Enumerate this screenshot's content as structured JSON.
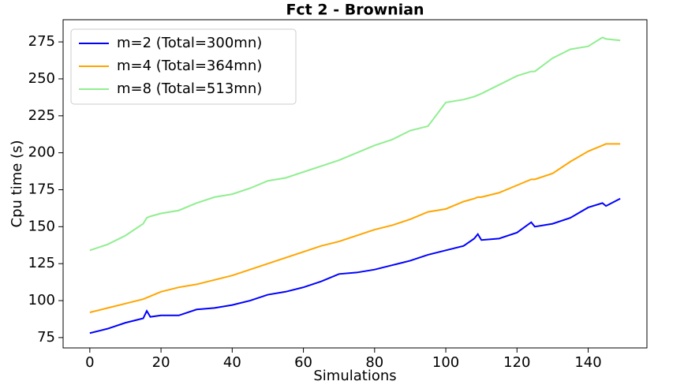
{
  "chart_data": {
    "type": "line",
    "title": "Fct 2 - Brownian",
    "x_label": "Simulations",
    "y_label": "Cpu time (s)",
    "x": [
      0,
      5,
      10,
      15,
      16,
      17,
      20,
      25,
      30,
      35,
      40,
      45,
      50,
      55,
      60,
      65,
      70,
      75,
      80,
      85,
      90,
      95,
      100,
      105,
      108,
      109,
      110,
      115,
      120,
      124,
      125,
      130,
      135,
      140,
      144,
      145,
      149
    ],
    "series": [
      {
        "name": "m=2 (Total=300mn)",
        "color": "#0000ff",
        "values": [
          78,
          81,
          85,
          88,
          93,
          89,
          90,
          90,
          94,
          95,
          97,
          100,
          104,
          106,
          109,
          113,
          118,
          119,
          121,
          124,
          127,
          131,
          134,
          137,
          142,
          145,
          141,
          142,
          146,
          153,
          150,
          152,
          156,
          163,
          166,
          164,
          169
        ]
      },
      {
        "name": "m=4 (Total=364mn)",
        "color": "#ffa500",
        "values": [
          92,
          95,
          98,
          101,
          102,
          103,
          106,
          109,
          111,
          114,
          117,
          121,
          125,
          129,
          133,
          137,
          140,
          144,
          148,
          151,
          155,
          160,
          162,
          167,
          169,
          170,
          170,
          173,
          178,
          182,
          182,
          186,
          194,
          201,
          205,
          206,
          206
        ]
      },
      {
        "name": "m=8 (Total=513mn)",
        "color": "#90ee90",
        "values": [
          134,
          138,
          144,
          152,
          156,
          157,
          159,
          161,
          166,
          170,
          172,
          176,
          181,
          183,
          187,
          191,
          195,
          200,
          205,
          209,
          215,
          218,
          234,
          236,
          238,
          239,
          240,
          246,
          252,
          255,
          255,
          264,
          270,
          272,
          278,
          277,
          276
        ]
      }
    ],
    "xlim": [
      -7.5,
      156.5
    ],
    "xticks": [
      0,
      20,
      40,
      60,
      80,
      100,
      120,
      140
    ],
    "ylim": [
      68,
      290
    ],
    "yticks": [
      75,
      100,
      125,
      150,
      175,
      200,
      225,
      250,
      275
    ],
    "legend": "upper left"
  }
}
